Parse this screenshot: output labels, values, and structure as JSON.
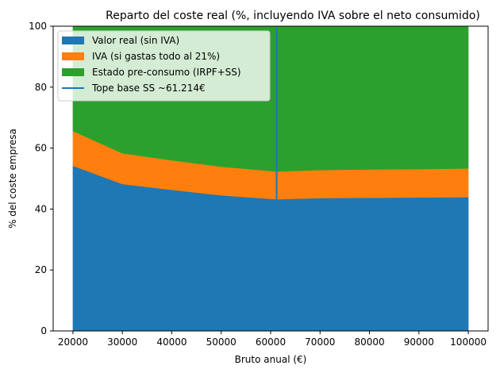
{
  "chart_data": {
    "type": "area",
    "title": "Reparto del coste real (%, incluyendo IVA sobre el neto consumido)",
    "xlabel": "Bruto anual (€)",
    "ylabel": "% del coste empresa",
    "x": [
      20000,
      30000,
      40000,
      50000,
      61214,
      70000,
      80000,
      90000,
      100000
    ],
    "xlim": [
      16000,
      104000
    ],
    "ylim": [
      0,
      100
    ],
    "xticks": [
      20000,
      30000,
      40000,
      50000,
      60000,
      70000,
      80000,
      90000,
      100000
    ],
    "yticks": [
      0,
      20,
      40,
      60,
      80,
      100
    ],
    "series": [
      {
        "name": "Valor real (sin IVA)",
        "color": "#1f77b4",
        "values": [
          54.2,
          48.2,
          46.3,
          44.5,
          43.2,
          43.6,
          43.7,
          43.8,
          43.9
        ]
      },
      {
        "name": "IVA (si gastas todo al 21%)",
        "color": "#ff7f0e",
        "values": [
          11.4,
          10.1,
          9.7,
          9.4,
          9.1,
          9.2,
          9.3,
          9.3,
          9.4
        ]
      },
      {
        "name": "Estado pre-consumo (IRPF+SS)",
        "color": "#2ca02c",
        "values": [
          34.4,
          41.7,
          44.0,
          46.1,
          47.7,
          47.2,
          47.0,
          46.9,
          46.7
        ]
      }
    ],
    "vline": {
      "name": "Tope base SS ~61.214€",
      "x": 61214,
      "color": "#1f77b4"
    },
    "legend": "top-left",
    "grid": false
  }
}
